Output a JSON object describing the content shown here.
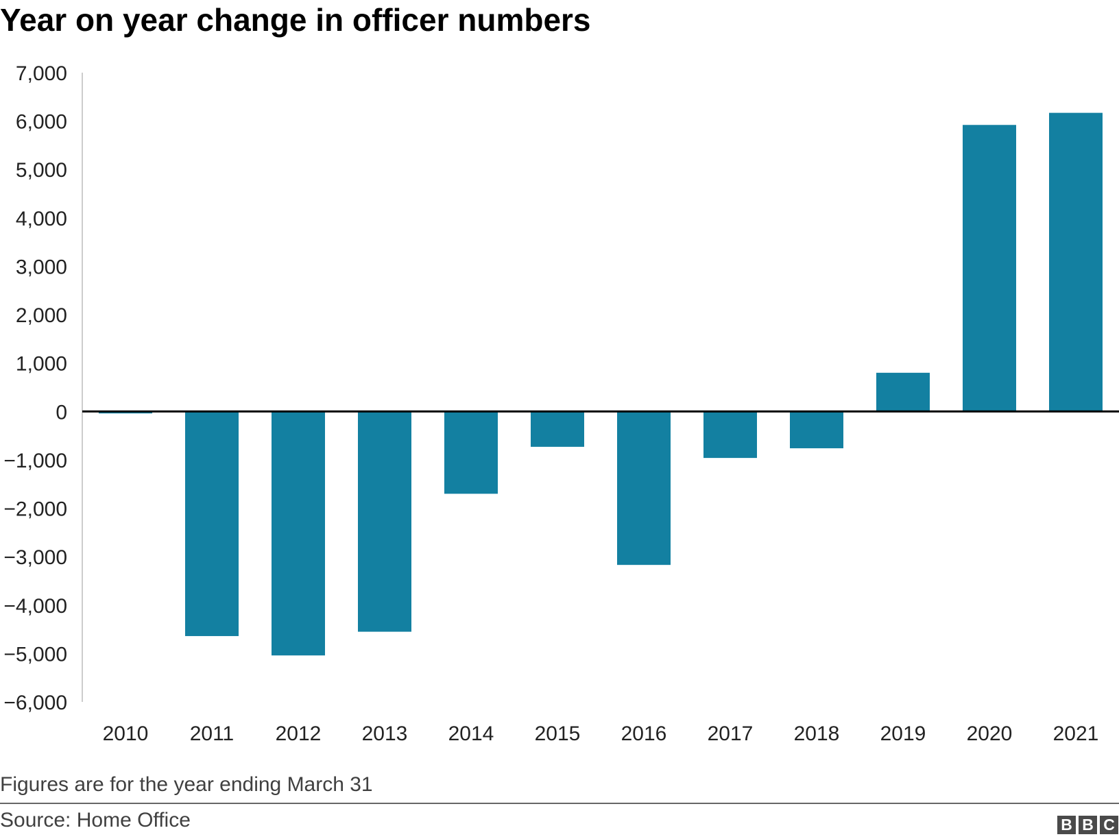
{
  "title": "Year on year change in officer numbers",
  "note": "Figures are for the year ending March 31",
  "source": "Source: Home Office",
  "logo": [
    "B",
    "B",
    "C"
  ],
  "colors": {
    "bar": "#1380A1",
    "axis": "#000000",
    "gridline": "#cccccc",
    "text": "#222222"
  },
  "chart_data": {
    "type": "bar",
    "title": "Year on year change in officer numbers",
    "xlabel": "",
    "ylabel": "",
    "categories": [
      "2010",
      "2011",
      "2012",
      "2013",
      "2014",
      "2015",
      "2016",
      "2017",
      "2018",
      "2019",
      "2020",
      "2021"
    ],
    "values": [
      -40,
      -4640,
      -5040,
      -4550,
      -1700,
      -730,
      -3170,
      -960,
      -760,
      800,
      5920,
      6170
    ],
    "ylim": [
      -6000,
      7000
    ],
    "yticks": [
      7000,
      6000,
      5000,
      4000,
      3000,
      2000,
      1000,
      0,
      -1000,
      -2000,
      -3000,
      -4000,
      -5000,
      -6000
    ],
    "ytick_labels": [
      "7,000",
      "6,000",
      "5,000",
      "4,000",
      "3,000",
      "2,000",
      "1,000",
      "0",
      "−1,000",
      "−2,000",
      "−3,000",
      "−4,000",
      "−5,000",
      "−6,000"
    ],
    "grid": false,
    "legend": "none"
  }
}
